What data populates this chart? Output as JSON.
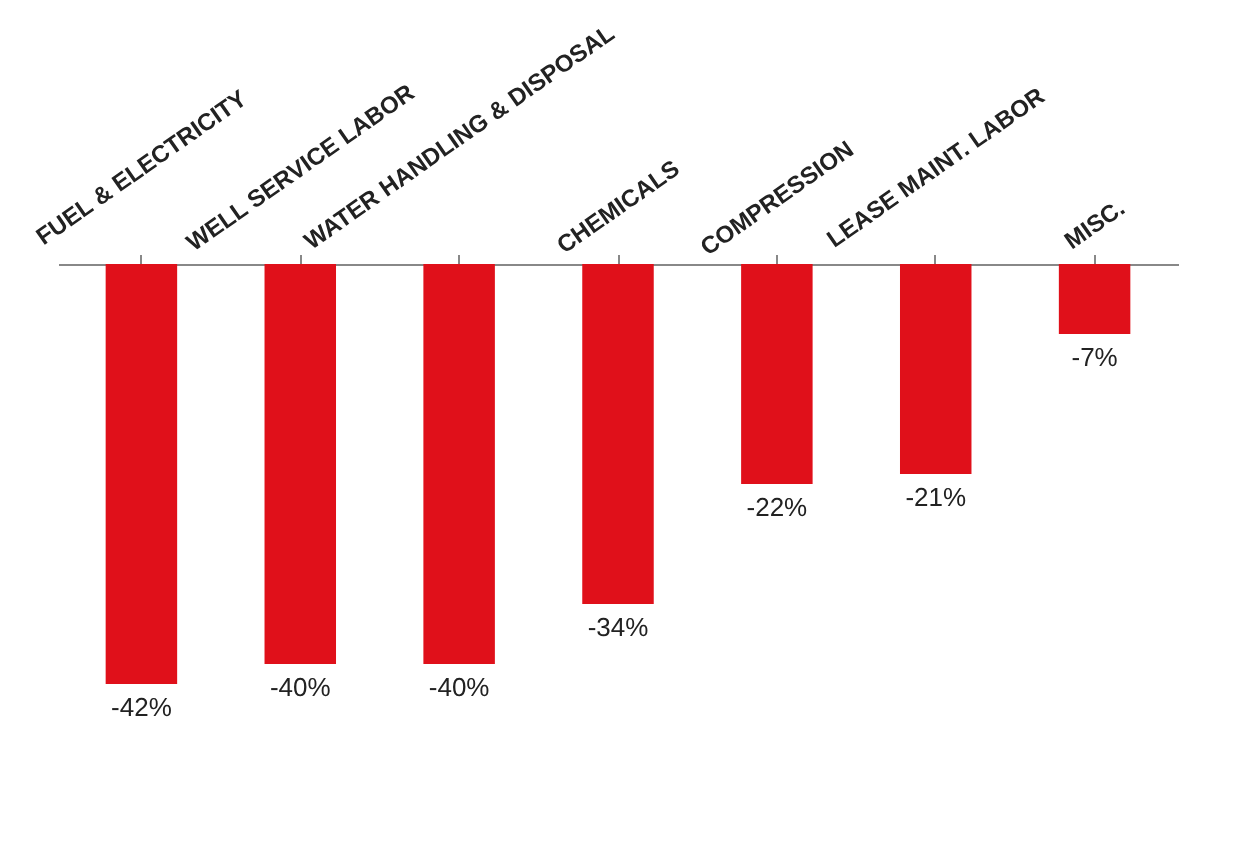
{
  "chart_data": {
    "type": "bar",
    "categories": [
      "FUEL & ELECTRICITY",
      "WELL SERVICE LABOR",
      "WATER HANDLING & DISPOSAL",
      "CHEMICALS",
      "COMPRESSION",
      "LEASE MAINT. LABOR",
      "MISC."
    ],
    "values": [
      -42,
      -40,
      -40,
      -34,
      -22,
      -21,
      -7
    ],
    "value_labels": [
      "-42%",
      "-40%",
      "-40%",
      "-34%",
      "-22%",
      "-21%",
      "-7%"
    ],
    "color": "#e0101a",
    "grid": false
  }
}
